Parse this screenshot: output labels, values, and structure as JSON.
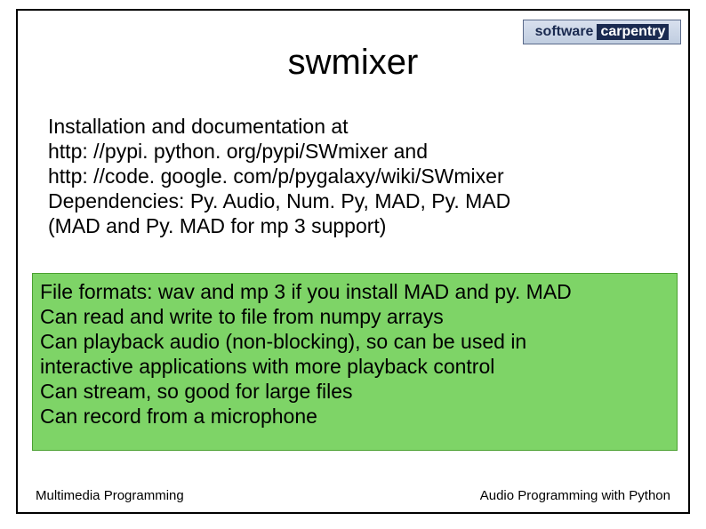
{
  "logo": {
    "software": "software",
    "carpentry": "carpentry",
    "bg_gradient_top": "#d8e0ee",
    "bg_gradient_bottom": "#c0cde0",
    "border_color": "#5a6a8a",
    "text_color": "#1a2a50",
    "carpentry_bg": "#1a2a50",
    "carpentry_color": "#ffffff"
  },
  "title": "swmixer",
  "body": {
    "line1": "Installation and documentation at",
    "line2": "http: //pypi. python. org/pypi/SWmixer and",
    "line3": "http: //code. google. com/p/pygalaxy/wiki/SWmixer",
    "line4": "Dependencies: Py. Audio, Num. Py, MAD, Py. MAD",
    "line5": "(MAD and Py. MAD for mp 3 support)"
  },
  "green_box": {
    "bg_color": "#7ed467",
    "border_color": "#4aa030",
    "line1": "File formats: wav and mp 3 if you install MAD and py. MAD",
    "line2": "Can read and write to file from numpy arrays",
    "line3": "Can playback audio (non-blocking), so can be used in",
    "line4": "interactive applications with more playback control",
    "line5": "Can stream, so good for large files",
    "line6": "Can record from a microphone"
  },
  "footer": {
    "left": "Multimedia Programming",
    "right": "Audio Programming with Python"
  },
  "styling": {
    "slide_border": "#000000",
    "title_fontsize": 40,
    "body_fontsize": 23,
    "footer_fontsize": 15,
    "text_color": "#000000",
    "background_color": "#ffffff"
  }
}
